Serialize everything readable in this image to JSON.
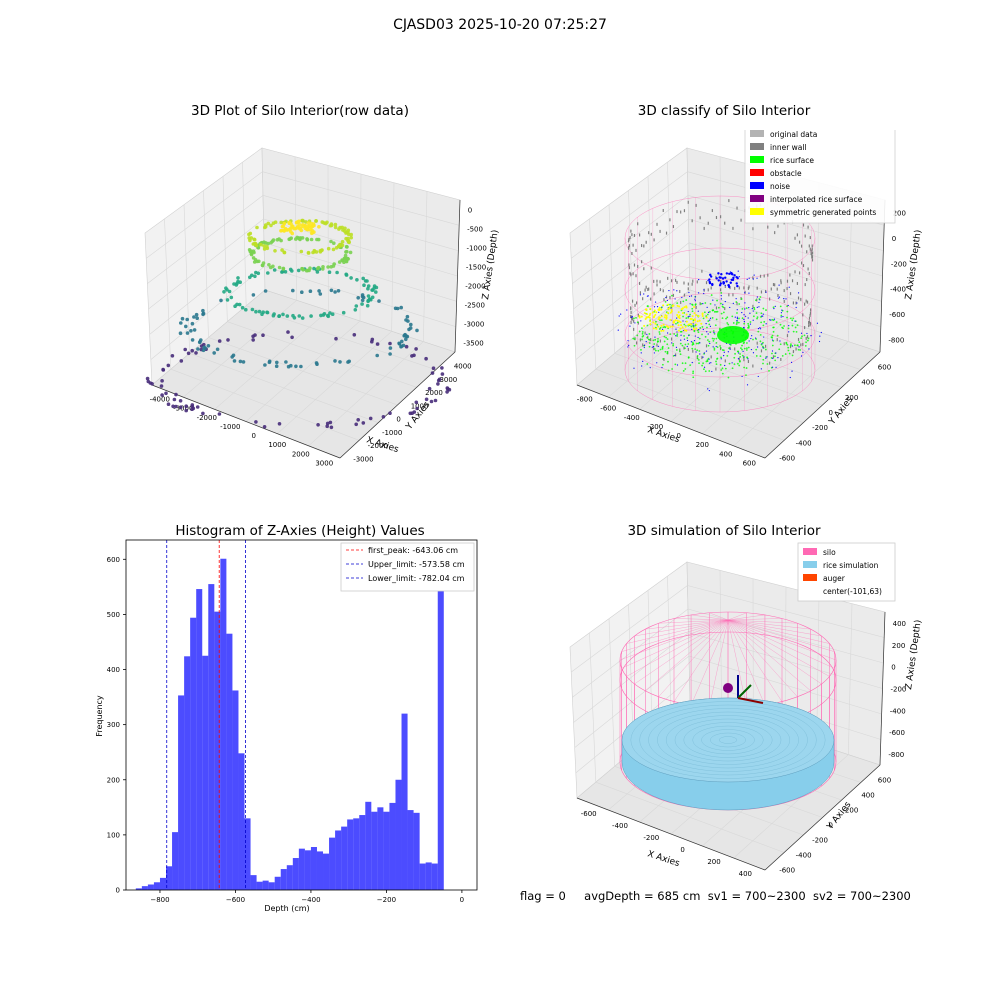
{
  "figure_title": "CJASD03 2025-10-20 07:25:27",
  "footer": {
    "flag": "flag = 0",
    "avg_depth": "avgDepth = 685 cm",
    "sv1": "sv1 = 700~2300",
    "sv2": "sv2 = 700~2300"
  },
  "chart_data": [
    {
      "type": "scatter",
      "title": "3D Plot of Silo Interior(row data)",
      "xlabel": "X Axies",
      "ylabel": "Y Axies",
      "zlabel": "Z Axies (Depth)",
      "x_ticks": [
        "-4000",
        "-3000",
        "-2000",
        "-1000",
        "0",
        "1000",
        "2000",
        "3000"
      ],
      "y_ticks": [
        "-3000",
        "-2000",
        "-1000",
        "0",
        "1000",
        "2000",
        "3000",
        "4000"
      ],
      "z_ticks": [
        "0",
        "-500",
        "-1000",
        "-1500",
        "-2000",
        "-2500",
        "-3000",
        "-3500"
      ],
      "colormap": "viridis",
      "layers": [
        {
          "z": 0,
          "radius": 3500,
          "color": "#472c7a"
        },
        {
          "z": -1200,
          "radius": 2800,
          "color": "#2a788e"
        },
        {
          "z": -2000,
          "radius": 1800,
          "color": "#22a884"
        },
        {
          "z": -2900,
          "radius": 1200,
          "color": "#7ad151"
        },
        {
          "z": -3300,
          "radius": 1200,
          "color": "#bddf26"
        },
        {
          "z": -3500,
          "radius": 500,
          "color": "#fde725"
        }
      ]
    },
    {
      "type": "scatter",
      "title": "3D classify of Silo Interior",
      "xlabel": "X Axies",
      "ylabel": "Y Axies",
      "zlabel": "Z Axies (Depth)",
      "x_ticks": [
        "-800",
        "-600",
        "-400",
        "-200",
        "0",
        "200",
        "400",
        "600"
      ],
      "y_ticks": [
        "-600",
        "-400",
        "-200",
        "0",
        "200",
        "400",
        "600"
      ],
      "z_ticks": [
        "200",
        "0",
        "-200",
        "-400",
        "-600",
        "-800"
      ],
      "legend": [
        {
          "label": "original data",
          "color": "#b3b3b3"
        },
        {
          "label": "inner wall",
          "color": "#808080"
        },
        {
          "label": "rice surface",
          "color": "#00ff00"
        },
        {
          "label": "obstacle",
          "color": "#ff0000"
        },
        {
          "label": "noise",
          "color": "#0000ff"
        },
        {
          "label": "interpolated rice surface",
          "color": "#800080"
        },
        {
          "label": "symmetric generated points",
          "color": "#ffff00"
        }
      ]
    },
    {
      "type": "bar",
      "title": "Histogram of Z-Axies (Height) Values",
      "xlabel": "Depth (cm)",
      "ylabel": "Frequency",
      "xlim": [
        -890,
        40
      ],
      "ylim": [
        0,
        635
      ],
      "x_ticks": [
        -800,
        -600,
        -400,
        -200,
        0
      ],
      "y_ticks": [
        0,
        100,
        200,
        300,
        400,
        500,
        600
      ],
      "bin_width": 16,
      "bins_start": -864,
      "values": [
        3,
        7,
        10,
        14,
        22,
        43,
        105,
        353,
        424,
        494,
        546,
        425,
        555,
        505,
        601,
        465,
        362,
        248,
        130,
        27,
        15,
        17,
        14,
        24,
        38,
        45,
        58,
        75,
        72,
        78,
        70,
        66,
        95,
        108,
        115,
        128,
        130,
        136,
        160,
        142,
        150,
        142,
        158,
        200,
        320,
        145,
        140,
        48,
        50,
        48,
        598
      ],
      "color": "#0000ff",
      "vlines": [
        {
          "label": "first_peak: -643.06 cm",
          "x": -643.06,
          "color": "#ff0000"
        },
        {
          "label": "Upper_limit: -573.58 cm",
          "x": -573.58,
          "color": "#0000cc"
        },
        {
          "label": "Lower_limit: -782.04 cm",
          "x": -782.04,
          "color": "#0000cc"
        }
      ]
    },
    {
      "type": "area",
      "title": "3D simulation of Silo Interior",
      "xlabel": "X Axies",
      "ylabel": "Y Axies",
      "zlabel": "Z Axies (Depth)",
      "x_ticks": [
        "-600",
        "-400",
        "-200",
        "0",
        "200",
        "400"
      ],
      "y_ticks": [
        "-600",
        "-400",
        "-200",
        "0",
        "200",
        "400",
        "600"
      ],
      "z_ticks": [
        "400",
        "200",
        "0",
        "-200",
        "-400",
        "-600",
        "-800"
      ],
      "legend": [
        {
          "label": "silo",
          "color": "#ff69b4"
        },
        {
          "label": "rice simulation",
          "color": "#87ceeb"
        },
        {
          "label": "auger",
          "color": "#ff4500"
        },
        {
          "label": "center(-101,63)",
          "color": ""
        }
      ]
    }
  ]
}
